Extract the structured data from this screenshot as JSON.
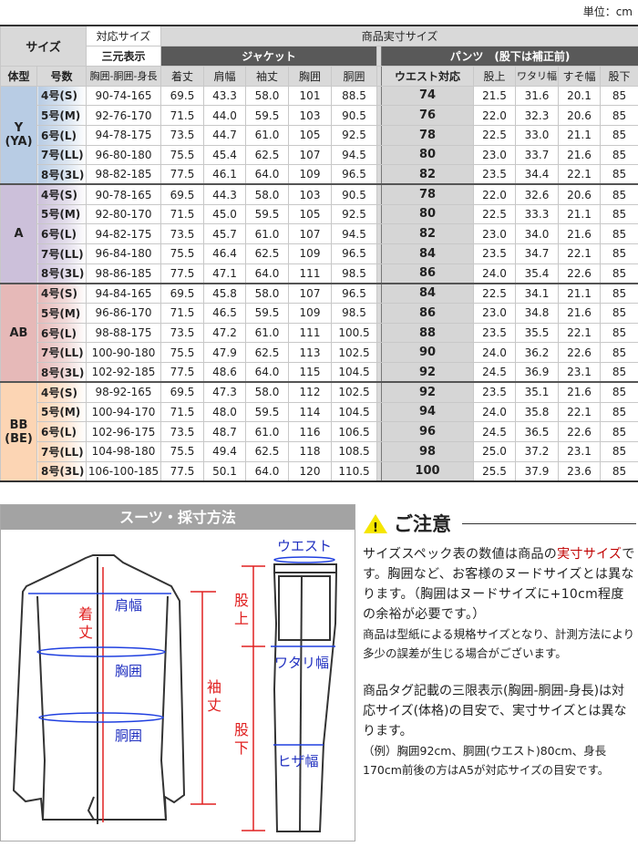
{
  "unit": "単位：cm",
  "header": {
    "size": "サイズ",
    "taiou": "対応サイズ",
    "sangen": "三元表示",
    "actual": "商品実寸サイズ",
    "jacket": "ジャケット",
    "pants": "パンツ　(股下は補正前)",
    "cols": [
      "体型",
      "号数",
      "胸囲-胴囲-身長",
      "着丈",
      "肩幅",
      "袖丈",
      "胸囲",
      "胴囲",
      "ウエスト対応",
      "股上",
      "ワタリ幅",
      "すそ幅",
      "股下"
    ]
  },
  "groups": [
    {
      "type": "Y",
      "sub": "(YA)",
      "color": "#b8cce4",
      "light": "#dce6f1",
      "rows": [
        [
          "4号(S)",
          "90-74-165",
          "69.5",
          "43.3",
          "58.0",
          "101",
          "88.5",
          "74",
          "21.5",
          "31.6",
          "20.1",
          "85"
        ],
        [
          "5号(M)",
          "92-76-170",
          "71.5",
          "44.0",
          "59.5",
          "103",
          "90.5",
          "76",
          "22.0",
          "32.3",
          "20.6",
          "85"
        ],
        [
          "6号(L)",
          "94-78-175",
          "73.5",
          "44.7",
          "61.0",
          "105",
          "92.5",
          "78",
          "22.5",
          "33.0",
          "21.1",
          "85"
        ],
        [
          "7号(LL)",
          "96-80-180",
          "75.5",
          "45.4",
          "62.5",
          "107",
          "94.5",
          "80",
          "23.0",
          "33.7",
          "21.6",
          "85"
        ],
        [
          "8号(3L)",
          "98-82-185",
          "77.5",
          "46.1",
          "64.0",
          "109",
          "96.5",
          "82",
          "23.5",
          "34.4",
          "22.1",
          "85"
        ]
      ]
    },
    {
      "type": "A",
      "sub": "",
      "color": "#ccc0da",
      "light": "#e4dfec",
      "rows": [
        [
          "4号(S)",
          "90-78-165",
          "69.5",
          "44.3",
          "58.0",
          "103",
          "90.5",
          "78",
          "22.0",
          "32.6",
          "20.6",
          "85"
        ],
        [
          "5号(M)",
          "92-80-170",
          "71.5",
          "45.0",
          "59.5",
          "105",
          "92.5",
          "80",
          "22.5",
          "33.3",
          "21.1",
          "85"
        ],
        [
          "6号(L)",
          "94-82-175",
          "73.5",
          "45.7",
          "61.0",
          "107",
          "94.5",
          "82",
          "23.0",
          "34.0",
          "21.6",
          "85"
        ],
        [
          "7号(LL)",
          "96-84-180",
          "75.5",
          "46.4",
          "62.5",
          "109",
          "96.5",
          "84",
          "23.5",
          "34.7",
          "22.1",
          "85"
        ],
        [
          "8号(3L)",
          "98-86-185",
          "77.5",
          "47.1",
          "64.0",
          "111",
          "98.5",
          "86",
          "24.0",
          "35.4",
          "22.6",
          "85"
        ]
      ]
    },
    {
      "type": "AB",
      "sub": "",
      "color": "#e6b9b8",
      "light": "#f2dcdb",
      "rows": [
        [
          "4号(S)",
          "94-84-165",
          "69.5",
          "45.8",
          "58.0",
          "107",
          "96.5",
          "84",
          "22.5",
          "34.1",
          "21.1",
          "85"
        ],
        [
          "5号(M)",
          "96-86-170",
          "71.5",
          "46.5",
          "59.5",
          "109",
          "98.5",
          "86",
          "23.0",
          "34.8",
          "21.6",
          "85"
        ],
        [
          "6号(L)",
          "98-88-175",
          "73.5",
          "47.2",
          "61.0",
          "111",
          "100.5",
          "88",
          "23.5",
          "35.5",
          "22.1",
          "85"
        ],
        [
          "7号(LL)",
          "100-90-180",
          "75.5",
          "47.9",
          "62.5",
          "113",
          "102.5",
          "90",
          "24.0",
          "36.2",
          "22.6",
          "85"
        ],
        [
          "8号(3L)",
          "102-92-185",
          "77.5",
          "48.6",
          "64.0",
          "115",
          "104.5",
          "92",
          "24.5",
          "36.9",
          "23.1",
          "85"
        ]
      ]
    },
    {
      "type": "BB",
      "sub": "(BE)",
      "color": "#fcd5b4",
      "light": "#fde9d9",
      "rows": [
        [
          "4号(S)",
          "98-92-165",
          "69.5",
          "47.3",
          "58.0",
          "112",
          "102.5",
          "92",
          "23.5",
          "35.1",
          "21.6",
          "85"
        ],
        [
          "5号(M)",
          "100-94-170",
          "71.5",
          "48.0",
          "59.5",
          "114",
          "104.5",
          "94",
          "24.0",
          "35.8",
          "22.1",
          "85"
        ],
        [
          "6号(L)",
          "102-96-175",
          "73.5",
          "48.7",
          "61.0",
          "116",
          "106.5",
          "96",
          "24.5",
          "36.5",
          "22.6",
          "85"
        ],
        [
          "7号(LL)",
          "104-98-180",
          "75.5",
          "49.4",
          "62.5",
          "118",
          "108.5",
          "98",
          "25.0",
          "37.2",
          "23.1",
          "85"
        ],
        [
          "8号(3L)",
          "106-100-185",
          "77.5",
          "50.1",
          "64.0",
          "120",
          "110.5",
          "100",
          "25.5",
          "37.9",
          "23.6",
          "85"
        ]
      ]
    }
  ],
  "diagram": {
    "title": "スーツ・採寸方法",
    "labels": {
      "katahaba": "肩幅",
      "kitake1": "着",
      "kitake2": "丈",
      "kyoui": "胸囲",
      "doui": "胴囲",
      "sodetake1": "袖",
      "sodetake2": "丈",
      "waist": "ウエスト",
      "matagami1": "股",
      "matagami2": "上",
      "watari": "ワタリ幅",
      "matashita1": "股",
      "matashita2": "下",
      "hiza": "ヒザ幅"
    }
  },
  "notes": {
    "title": "ご注意",
    "p1a": "サイズスペック表の数値は商品の",
    "p1red": "実寸サイズ",
    "p1b": "です。胸囲など、お客様のヌードサイズとは異なります。（胸囲はヌードサイズに+10cm程度の余裕が必要です。）",
    "p2": "商品は型紙による規格サイズとなり、計測方法により多少の誤差が生じる場合がございます。",
    "p3": "商品タグ記載の三限表示(胸囲-胴囲-身長)は対応サイズ(体格)の目安で、実寸サイズとは異なります。",
    "p4": "（例）胸囲92cm、胴囲(ウエスト)80cm、身長170cm前後の方はA5が対応サイズの目安です。"
  }
}
